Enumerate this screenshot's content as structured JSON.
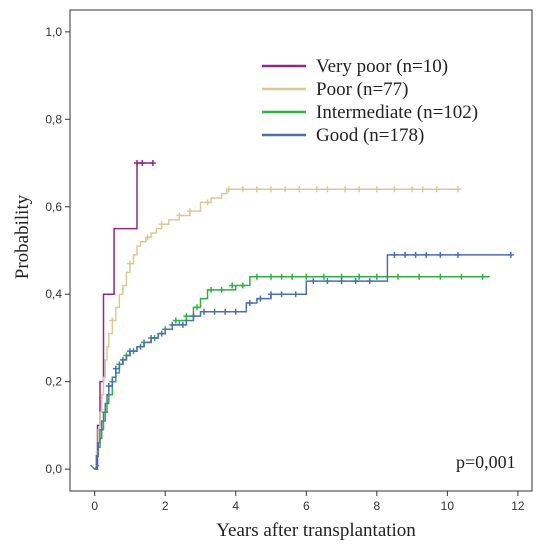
{
  "chart_data": {
    "type": "line",
    "title": "",
    "xlabel": "Years after transplantation",
    "ylabel": "Probability",
    "xlim": [
      -0.7,
      12.4
    ],
    "ylim": [
      -0.05,
      1.05
    ],
    "x_ticks": [
      0,
      2,
      4,
      6,
      8,
      10,
      12
    ],
    "x_tick_labels": [
      "0",
      "2",
      "4",
      "6",
      "8",
      "10",
      "12"
    ],
    "y_ticks": [
      0.0,
      0.2,
      0.4,
      0.6,
      0.8,
      1.0
    ],
    "y_tick_labels": [
      "0,0",
      "0,2",
      "0,4",
      "0,6",
      "0,8",
      "1,0"
    ],
    "grid": false,
    "legend_position": "top-right",
    "annotation": "p=0,001",
    "series": [
      {
        "name": "Very poor (n=10)",
        "color": "#8e2a86",
        "x": [
          0,
          0.08,
          0.15,
          0.25,
          0.45,
          0.55,
          1.05,
          1.2,
          1.65
        ],
        "y": [
          0,
          0.1,
          0.2,
          0.4,
          0.4,
          0.55,
          0.55,
          0.7,
          0.7
        ],
        "censor_x": [
          1.2,
          1.35,
          1.65
        ],
        "censor_y": [
          0.7,
          0.7,
          0.7
        ]
      },
      {
        "name": "Poor (n=77)",
        "color": "#d6cc93",
        "x": [
          0,
          0.05,
          0.1,
          0.15,
          0.2,
          0.25,
          0.3,
          0.35,
          0.4,
          0.5,
          0.6,
          0.7,
          0.8,
          0.9,
          1.0,
          1.1,
          1.2,
          1.3,
          1.45,
          1.6,
          1.75,
          1.9,
          2.1,
          2.4,
          2.7,
          3.0,
          3.3,
          3.6,
          3.75,
          10.4
        ],
        "y": [
          0,
          0.04,
          0.09,
          0.13,
          0.17,
          0.21,
          0.25,
          0.28,
          0.31,
          0.34,
          0.37,
          0.4,
          0.42,
          0.45,
          0.47,
          0.49,
          0.51,
          0.52,
          0.53,
          0.54,
          0.55,
          0.56,
          0.57,
          0.58,
          0.59,
          0.61,
          0.62,
          0.63,
          0.64,
          0.64
        ],
        "censor_x": [
          0.5,
          1.0,
          1.5,
          1.9,
          2.4,
          2.7,
          3.2,
          3.8,
          4.2,
          4.6,
          5.0,
          5.4,
          5.8,
          6.3,
          6.6,
          7.1,
          7.5,
          8.0,
          8.5,
          9.0,
          9.3,
          9.7,
          10.3
        ],
        "censor_y": [
          0.34,
          0.47,
          0.53,
          0.56,
          0.58,
          0.59,
          0.61,
          0.64,
          0.64,
          0.64,
          0.64,
          0.64,
          0.64,
          0.64,
          0.64,
          0.64,
          0.64,
          0.64,
          0.64,
          0.64,
          0.64,
          0.64,
          0.64
        ]
      },
      {
        "name": "Intermediate (n=102)",
        "color": "#2fb043",
        "x": [
          0,
          0.05,
          0.1,
          0.15,
          0.2,
          0.25,
          0.3,
          0.35,
          0.4,
          0.5,
          0.6,
          0.7,
          0.8,
          0.9,
          1.0,
          1.2,
          1.4,
          1.6,
          1.8,
          2.0,
          2.2,
          2.4,
          2.6,
          2.8,
          3.0,
          3.2,
          3.6,
          4.0,
          4.4,
          6.0,
          11.2
        ],
        "y": [
          0,
          0.03,
          0.05,
          0.07,
          0.09,
          0.11,
          0.13,
          0.15,
          0.17,
          0.2,
          0.22,
          0.24,
          0.25,
          0.26,
          0.27,
          0.28,
          0.29,
          0.3,
          0.31,
          0.32,
          0.33,
          0.34,
          0.35,
          0.37,
          0.39,
          0.41,
          0.41,
          0.42,
          0.44,
          0.44,
          0.44
        ],
        "censor_x": [
          0.3,
          0.5,
          0.7,
          0.9,
          1.1,
          1.4,
          1.7,
          2.0,
          2.3,
          2.6,
          2.9,
          3.3,
          3.6,
          3.9,
          4.2,
          4.6,
          5.0,
          5.3,
          5.6,
          6.0,
          6.5,
          7.0,
          7.5,
          8.0,
          8.6,
          9.2,
          9.8,
          10.4,
          11.0
        ],
        "censor_y": [
          0.13,
          0.2,
          0.24,
          0.26,
          0.27,
          0.29,
          0.3,
          0.32,
          0.34,
          0.35,
          0.37,
          0.41,
          0.41,
          0.42,
          0.42,
          0.44,
          0.44,
          0.44,
          0.44,
          0.44,
          0.44,
          0.44,
          0.44,
          0.44,
          0.44,
          0.44,
          0.44,
          0.44,
          0.44
        ]
      },
      {
        "name": "Good (n=178)",
        "color": "#4e6fb0",
        "x": [
          0,
          0.05,
          0.1,
          0.15,
          0.2,
          0.25,
          0.3,
          0.35,
          0.4,
          0.5,
          0.6,
          0.7,
          0.8,
          0.9,
          1.0,
          1.2,
          1.4,
          1.6,
          1.8,
          2.0,
          2.2,
          2.4,
          2.6,
          2.8,
          3.0,
          3.5,
          4.0,
          4.3,
          4.6,
          5.0,
          6.0,
          7.0,
          8.3,
          11.8
        ],
        "y": [
          0,
          0.03,
          0.06,
          0.09,
          0.11,
          0.13,
          0.15,
          0.17,
          0.19,
          0.21,
          0.23,
          0.24,
          0.25,
          0.26,
          0.27,
          0.28,
          0.29,
          0.3,
          0.31,
          0.32,
          0.33,
          0.33,
          0.34,
          0.35,
          0.36,
          0.36,
          0.36,
          0.38,
          0.39,
          0.4,
          0.43,
          0.43,
          0.49,
          0.49
        ],
        "censor_x": [
          0.4,
          0.6,
          0.8,
          1.0,
          1.3,
          1.6,
          1.9,
          2.2,
          2.5,
          2.8,
          3.1,
          3.4,
          3.7,
          4.0,
          4.4,
          4.7,
          5.0,
          5.3,
          5.7,
          6.2,
          6.6,
          7.0,
          7.4,
          7.8,
          8.5,
          8.8,
          9.1,
          9.4,
          9.8,
          10.3,
          11.8
        ],
        "censor_y": [
          0.19,
          0.23,
          0.25,
          0.27,
          0.28,
          0.3,
          0.31,
          0.33,
          0.33,
          0.35,
          0.36,
          0.36,
          0.36,
          0.36,
          0.38,
          0.39,
          0.4,
          0.4,
          0.4,
          0.43,
          0.43,
          0.43,
          0.43,
          0.43,
          0.49,
          0.49,
          0.49,
          0.49,
          0.49,
          0.49,
          0.49
        ]
      }
    ]
  }
}
